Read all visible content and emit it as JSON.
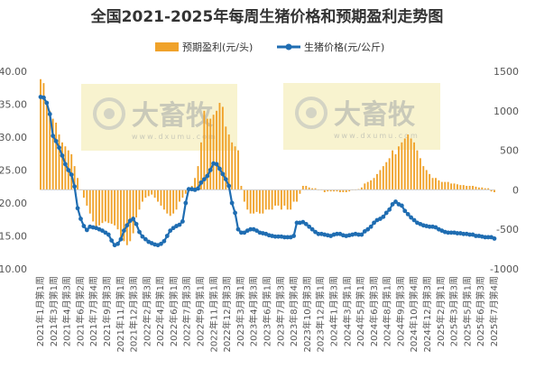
{
  "chart_data": {
    "type": "bar+line",
    "title": "全国2021-2025年每周生猪价格和预期盈利走势图",
    "legend": {
      "placement": "top-center"
    },
    "watermark": {
      "brand": "大畜牧",
      "url": "www.dxumu.com"
    },
    "colors": {
      "bar": "#f0a22a",
      "line": "#1f6db2",
      "title": "#333333",
      "watermark_bg": "#f7f1c7"
    },
    "x_ticks": [
      "2021年1月第1周",
      "2021年3月第1周",
      "2021年4月第3周",
      "2021年6月第2周",
      "2021年7月第4周",
      "2021年9月第3周",
      "2021年11月第1周",
      "2021年12月第3周",
      "2022年2月第3周",
      "2022年4月第1周",
      "2022年6月第1周",
      "2022年7月第3周",
      "2022年9月第1周",
      "2022年11月第1周",
      "2022年12月第3周",
      "2023年3月第1周",
      "2023年4月第3周",
      "2023年6月第1周",
      "2023年7月第3周",
      "2023年8月第4周",
      "2023年10月第3周",
      "2023年12月第1周",
      "2024年1月第3周",
      "2024年3月第1周",
      "2024年5月第1周",
      "2024年6月第3周",
      "2024年8月第1周",
      "2024年9月第3周",
      "2024年10月第4周",
      "2024年12月第3周",
      "2025年2月第1周",
      "2025年3月第3周",
      "2025年5月第1周",
      "2025年6月第3周",
      "2025年7月第4周"
    ],
    "y_left": {
      "label": "",
      "ylim": [
        10,
        40
      ],
      "ticks": [
        "10.00",
        "15.00",
        "20.00",
        "25.00",
        "30.00",
        "35.00",
        "40.00"
      ]
    },
    "y_right": {
      "label": "",
      "ylim": [
        -1000,
        1500
      ],
      "ticks": [
        "-1000",
        "-500",
        "0",
        "500",
        "1000",
        "1500"
      ]
    },
    "series": [
      {
        "name": "预期盈利(元/头)",
        "type": "bar",
        "axis": "right",
        "values": [
          1400,
          1350,
          1100,
          1000,
          900,
          850,
          700,
          600,
          550,
          500,
          450,
          300,
          150,
          0,
          -100,
          -200,
          -300,
          -400,
          -500,
          -450,
          -420,
          -400,
          -420,
          -430,
          -450,
          -500,
          -600,
          -650,
          -700,
          -650,
          -550,
          -350,
          -250,
          -150,
          -100,
          -80,
          -60,
          -100,
          -150,
          -200,
          -250,
          -300,
          -330,
          -300,
          -250,
          -150,
          -100,
          -50,
          0,
          50,
          150,
          300,
          600,
          1000,
          900,
          900,
          950,
          1000,
          1100,
          1050,
          800,
          700,
          600,
          550,
          500,
          50,
          -150,
          -250,
          -300,
          -300,
          -280,
          -300,
          -300,
          -250,
          -250,
          -250,
          -200,
          -200,
          -250,
          -200,
          -250,
          -250,
          -150,
          -150,
          -50,
          50,
          50,
          30,
          20,
          20,
          0,
          0,
          -30,
          -20,
          -20,
          -20,
          -20,
          -30,
          -30,
          -30,
          -20,
          0,
          0,
          10,
          30,
          80,
          100,
          120,
          150,
          200,
          250,
          300,
          350,
          400,
          500,
          450,
          550,
          600,
          650,
          700,
          650,
          600,
          500,
          400,
          300,
          250,
          200,
          150,
          150,
          120,
          100,
          100,
          100,
          80,
          80,
          70,
          60,
          60,
          50,
          50,
          50,
          40,
          30,
          30,
          20,
          20,
          -20,
          -30
        ]
      },
      {
        "name": "生猪价格(元/公斤)",
        "type": "line",
        "axis": "left",
        "values": [
          36.1,
          36.0,
          35.2,
          33.5,
          30.2,
          29.4,
          28.4,
          27.2,
          25.9,
          25.0,
          24.3,
          22.5,
          19.2,
          17.6,
          16.5,
          15.9,
          16.4,
          16.3,
          16.2,
          16.0,
          15.8,
          15.5,
          15.2,
          14.3,
          13.6,
          13.8,
          14.5,
          15.8,
          16.6,
          17.3,
          17.6,
          16.8,
          15.6,
          14.9,
          14.5,
          14.1,
          13.9,
          13.7,
          13.6,
          13.8,
          14.2,
          15.0,
          15.8,
          16.2,
          16.5,
          16.7,
          17.2,
          20.0,
          22.1,
          22.1,
          22.0,
          22.2,
          23.1,
          23.6,
          24.1,
          25.0,
          26.0,
          25.9,
          25.2,
          24.4,
          23.6,
          22.6,
          20.0,
          18.5,
          16.0,
          15.5,
          15.5,
          15.8,
          16.0,
          16.0,
          15.8,
          15.5,
          15.4,
          15.3,
          15.1,
          15.0,
          14.9,
          14.9,
          14.9,
          14.8,
          14.8,
          14.8,
          15.0,
          17.0,
          17.0,
          17.1,
          16.8,
          16.4,
          16.0,
          15.6,
          15.3,
          15.3,
          15.2,
          15.1,
          15.0,
          15.2,
          15.3,
          15.3,
          15.1,
          15.0,
          15.1,
          15.2,
          15.3,
          15.2,
          15.2,
          15.7,
          16.0,
          16.4,
          17.0,
          17.4,
          17.6,
          17.9,
          18.5,
          19.0,
          19.8,
          20.2,
          19.8,
          19.6,
          18.8,
          18.3,
          17.8,
          17.4,
          17.0,
          16.8,
          16.6,
          16.5,
          16.4,
          16.4,
          16.3,
          16.0,
          15.8,
          15.6,
          15.5,
          15.5,
          15.5,
          15.4,
          15.4,
          15.3,
          15.3,
          15.2,
          15.2,
          15.0,
          15.0,
          14.9,
          14.8,
          14.8,
          14.8,
          14.6
        ]
      }
    ]
  }
}
